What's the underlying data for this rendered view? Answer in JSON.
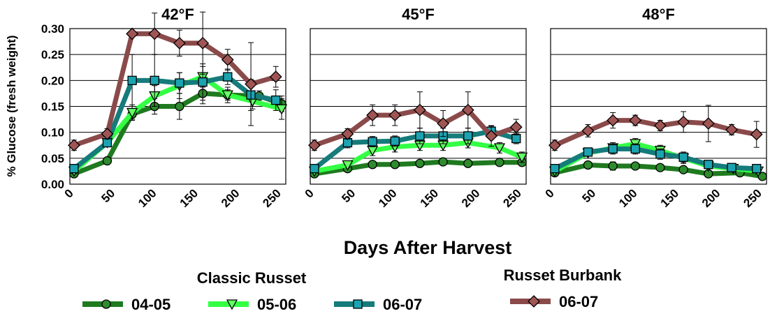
{
  "chart_data": {
    "type": "line",
    "ylabel": "% Glucose (fresh weight)",
    "xlabel": "Days After Harvest",
    "ylim": [
      0,
      0.3
    ],
    "yticks": [
      "0.00",
      "0.05",
      "0.10",
      "0.15",
      "0.20",
      "0.25",
      "0.30"
    ],
    "xlim": [
      0,
      260
    ],
    "xticks": [
      "0",
      "50",
      "100",
      "150",
      "200",
      "250"
    ],
    "legend": {
      "groups": [
        {
          "title": "Classic Russet",
          "series": [
            "04-05",
            "05-06",
            "06-07"
          ]
        },
        {
          "title": "Russet Burbank",
          "series": [
            "06-07"
          ]
        }
      ]
    },
    "series_styles": [
      {
        "key": "cr0405",
        "color": "#1f7a1f",
        "marker_color": "#2e8b2e",
        "marker": "circle"
      },
      {
        "key": "cr0506",
        "color": "#33ff44",
        "marker_color": "#66ff66",
        "marker": "triangle-down"
      },
      {
        "key": "cr0607",
        "color": "#157b7b",
        "marker_color": "#1ba3b0",
        "marker": "square"
      },
      {
        "key": "rb0607",
        "color": "#8b4a4a",
        "marker_color": "#a05555",
        "marker": "diamond"
      }
    ],
    "panels": [
      {
        "title": "42°F",
        "series": [
          {
            "group": "Classic Russet",
            "name": "04-05",
            "key": "cr0405",
            "x": [
              5,
              45,
              75,
              102,
              132,
              160,
              190,
              228,
              255
            ],
            "y": [
              0.02,
              0.045,
              0.135,
              0.15,
              0.15,
              0.175,
              0.172,
              0.17,
              0.155
            ],
            "err": [
              0.005,
              0.005,
              0.01,
              0.015,
              0.025,
              0.02,
              0.01,
              0.01,
              0.015
            ]
          },
          {
            "group": "Classic Russet",
            "name": "05-06",
            "key": "cr0506",
            "x": [
              5,
              45,
              75,
              102,
              132,
              160,
              190,
              220,
              255
            ],
            "y": [
              0.025,
              0.08,
              0.138,
              0.17,
              0.19,
              0.207,
              0.172,
              0.16,
              0.145
            ],
            "err": [
              0.005,
              0.005,
              0.015,
              0.02,
              0.025,
              0.02,
              0.015,
              0.015,
              0.02
            ]
          },
          {
            "group": "Classic Russet",
            "name": "06-07",
            "key": "cr0607",
            "x": [
              5,
              45,
              75,
              102,
              132,
              160,
              190,
              218,
              248
            ],
            "y": [
              0.03,
              0.08,
              0.2,
              0.2,
              0.195,
              0.197,
              0.207,
              0.172,
              0.162
            ],
            "err": [
              0.005,
              0.008,
              0.05,
              0.05,
              0.02,
              0.035,
              0.015,
              0.03,
              0.02
            ]
          },
          {
            "group": "Russet Burbank",
            "name": "06-07",
            "key": "rb0607",
            "x": [
              5,
              45,
              75,
              102,
              132,
              160,
              190,
              218,
              248
            ],
            "y": [
              0.075,
              0.097,
              0.29,
              0.29,
              0.272,
              0.272,
              0.24,
              0.193,
              0.207
            ],
            "err": [
              0.01,
              0.01,
              0.0,
              0.04,
              0.025,
              0.06,
              0.02,
              0.08,
              0.02
            ]
          }
        ]
      },
      {
        "title": "45°F",
        "series": [
          {
            "group": "Classic Russet",
            "name": "04-05",
            "key": "cr0405",
            "x": [
              5,
              45,
              75,
              102,
              132,
              160,
              190,
              228,
              255
            ],
            "y": [
              0.02,
              0.03,
              0.038,
              0.038,
              0.04,
              0.043,
              0.04,
              0.042,
              0.042
            ],
            "err": [
              0.003,
              0.003,
              0.003,
              0.003,
              0.003,
              0.003,
              0.003,
              0.005,
              0.005
            ]
          },
          {
            "group": "Classic Russet",
            "name": "05-06",
            "key": "cr0506",
            "x": [
              5,
              45,
              75,
              102,
              132,
              160,
              190,
              228,
              255
            ],
            "y": [
              0.025,
              0.037,
              0.065,
              0.072,
              0.075,
              0.075,
              0.08,
              0.07,
              0.052
            ],
            "err": [
              0.003,
              0.005,
              0.01,
              0.01,
              0.01,
              0.01,
              0.01,
              0.01,
              0.01
            ]
          },
          {
            "group": "Classic Russet",
            "name": "06-07",
            "key": "cr0607",
            "x": [
              5,
              45,
              75,
              102,
              132,
              160,
              190,
              218,
              248
            ],
            "y": [
              0.03,
              0.08,
              0.082,
              0.083,
              0.093,
              0.093,
              0.093,
              0.102,
              0.088
            ],
            "err": [
              0.005,
              0.01,
              0.01,
              0.01,
              0.015,
              0.015,
              0.015,
              0.01,
              0.01
            ]
          },
          {
            "group": "Russet Burbank",
            "name": "06-07",
            "key": "rb0607",
            "x": [
              5,
              45,
              75,
              102,
              132,
              160,
              190,
              218,
              248
            ],
            "y": [
              0.075,
              0.097,
              0.133,
              0.133,
              0.143,
              0.117,
              0.143,
              0.093,
              0.11
            ],
            "err": [
              0.01,
              0.01,
              0.02,
              0.02,
              0.035,
              0.025,
              0.035,
              0.02,
              0.015
            ]
          }
        ]
      },
      {
        "title": "48°F",
        "series": [
          {
            "group": "Classic Russet",
            "name": "04-05",
            "key": "cr0405",
            "x": [
              5,
              45,
              75,
              102,
              132,
              160,
              190,
              228,
              255
            ],
            "y": [
              0.022,
              0.037,
              0.035,
              0.035,
              0.032,
              0.028,
              0.02,
              0.022,
              0.015
            ],
            "err": [
              0.003,
              0.003,
              0.008,
              0.005,
              0.005,
              0.005,
              0.005,
              0.005,
              0.005
            ]
          },
          {
            "group": "Classic Russet",
            "name": "05-06",
            "key": "cr0506",
            "x": [
              5,
              45,
              75,
              102,
              132,
              160,
              190,
              220,
              250
            ],
            "y": [
              0.025,
              0.06,
              0.07,
              0.078,
              0.065,
              0.05,
              0.035,
              0.03,
              0.025
            ],
            "err": [
              0.003,
              0.005,
              0.01,
              0.01,
              0.01,
              0.01,
              0.005,
              0.005,
              0.005
            ]
          },
          {
            "group": "Classic Russet",
            "name": "06-07",
            "key": "cr0607",
            "x": [
              5,
              45,
              75,
              102,
              132,
              160,
              190,
              218,
              248
            ],
            "y": [
              0.03,
              0.062,
              0.068,
              0.068,
              0.058,
              0.052,
              0.038,
              0.032,
              0.03
            ],
            "err": [
              0.005,
              0.005,
              0.01,
              0.01,
              0.01,
              0.01,
              0.005,
              0.005,
              0.005
            ]
          },
          {
            "group": "Russet Burbank",
            "name": "06-07",
            "key": "rb0607",
            "x": [
              5,
              45,
              75,
              102,
              132,
              160,
              190,
              218,
              248
            ],
            "y": [
              0.075,
              0.103,
              0.123,
              0.123,
              0.113,
              0.12,
              0.117,
              0.105,
              0.096
            ],
            "err": [
              0.01,
              0.012,
              0.015,
              0.01,
              0.01,
              0.02,
              0.035,
              0.01,
              0.025
            ]
          }
        ]
      }
    ]
  }
}
